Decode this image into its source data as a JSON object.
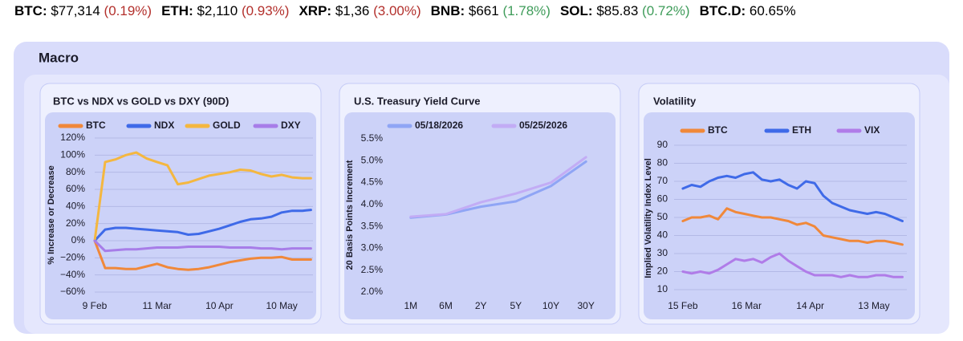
{
  "ticker": [
    {
      "symbol": "BTC:",
      "price": "$77,314",
      "change": "(0.19%)",
      "change_color": "#b3302c"
    },
    {
      "symbol": "ETH:",
      "price": "$2,110",
      "change": "(0.93%)",
      "change_color": "#b3302c"
    },
    {
      "symbol": "XRP:",
      "price": "$1,36",
      "change": "(3.00%)",
      "change_color": "#b3302c"
    },
    {
      "symbol": "BNB:",
      "price": "$661",
      "change": "(1.78%)",
      "change_color": "#3f9c5a"
    },
    {
      "symbol": "SOL:",
      "price": "$85.83",
      "change": "(0.72%)",
      "change_color": "#3f9c5a"
    },
    {
      "symbol": "BTC.D:",
      "price": "60.65%"
    }
  ],
  "section_title": "Macro",
  "chart_data": [
    {
      "type": "line",
      "title": "BTC vs NDX vs GOLD vs DXY (90D)",
      "y_label": "% Increase or Decrease",
      "grid": true,
      "x": [
        0,
        5,
        10,
        15,
        20,
        25,
        30,
        35,
        40,
        45,
        50,
        55,
        60,
        65,
        70,
        75,
        80,
        85,
        90,
        95,
        100,
        104
      ],
      "xlim": [
        0,
        105
      ],
      "xticks": [
        {
          "value": 0,
          "label": "9 Feb"
        },
        {
          "value": 30,
          "label": "11 Mar"
        },
        {
          "value": 60,
          "label": "10 Apr"
        },
        {
          "value": 90,
          "label": "10 May"
        }
      ],
      "ylim": [
        -60,
        120
      ],
      "yticks": [
        {
          "value": -60,
          "label": "−60%"
        },
        {
          "value": -40,
          "label": "−40%"
        },
        {
          "value": -20,
          "label": "−20%"
        },
        {
          "value": 0,
          "label": "0%"
        },
        {
          "value": 20,
          "label": "20%"
        },
        {
          "value": 40,
          "label": "40%"
        },
        {
          "value": 60,
          "label": "60%"
        },
        {
          "value": 80,
          "label": "80%"
        },
        {
          "value": 100,
          "label": "100%"
        },
        {
          "value": 120,
          "label": "120%"
        }
      ],
      "series": [
        {
          "name": "BTC",
          "color": "#f0883a",
          "values": [
            0,
            -32,
            -32,
            -33,
            -33,
            -30,
            -27,
            -31,
            -33,
            -34,
            -33,
            -31,
            -28,
            -25,
            -23,
            -21,
            -20,
            -20,
            -19,
            -22,
            -22,
            -22
          ]
        },
        {
          "name": "NDX",
          "color": "#3f6ae8",
          "values": [
            0,
            13,
            15,
            15,
            14,
            13,
            12,
            11,
            10,
            7,
            8,
            11,
            14,
            18,
            22,
            25,
            26,
            28,
            33,
            35,
            35,
            36
          ]
        },
        {
          "name": "GOLD",
          "color": "#f4b740",
          "values": [
            0,
            92,
            95,
            100,
            103,
            96,
            92,
            88,
            66,
            68,
            72,
            76,
            78,
            80,
            83,
            82,
            78,
            75,
            77,
            74,
            73,
            73
          ]
        },
        {
          "name": "DXY",
          "color": "#a77de8",
          "values": [
            0,
            -12,
            -11,
            -10,
            -10,
            -9,
            -8,
            -8,
            -8,
            -7,
            -7,
            -7,
            -7,
            -8,
            -8,
            -8,
            -9,
            -9,
            -10,
            -9,
            -9,
            -9
          ]
        }
      ]
    },
    {
      "type": "line",
      "title": "U.S. Treasury Yield Curve",
      "y_label": "20 Basis Points Increment",
      "grid": false,
      "categories": [
        "1M",
        "6M",
        "2Y",
        "5Y",
        "10Y",
        "30Y"
      ],
      "ylim": [
        2.0,
        5.5
      ],
      "yticks": [
        {
          "value": 2.0,
          "label": "2.0%"
        },
        {
          "value": 2.5,
          "label": "2.5%"
        },
        {
          "value": 3.0,
          "label": "3.0%"
        },
        {
          "value": 3.5,
          "label": "3.5%"
        },
        {
          "value": 4.0,
          "label": "4.0%"
        },
        {
          "value": 4.5,
          "label": "4.5%"
        },
        {
          "value": 5.0,
          "label": "5.0%"
        },
        {
          "value": 5.5,
          "label": "5.5%"
        }
      ],
      "series": [
        {
          "name": "05/18/2026",
          "color": "#8fa5f5",
          "values": [
            3.7,
            3.77,
            3.95,
            4.07,
            4.42,
            4.98
          ]
        },
        {
          "name": "05/25/2026",
          "color": "#c2acf5",
          "values": [
            3.72,
            3.78,
            4.05,
            4.25,
            4.5,
            5.08
          ]
        }
      ]
    },
    {
      "type": "line",
      "title": "Volatility",
      "y_label": "Implied Volatility Index Level",
      "grid": true,
      "x": [
        0,
        4,
        8,
        12,
        16,
        20,
        24,
        28,
        32,
        36,
        40,
        44,
        48,
        52,
        56,
        60,
        64,
        68,
        72,
        76,
        80,
        84,
        88,
        92,
        96,
        100
      ],
      "xlim": [
        -4,
        102
      ],
      "xticks": [
        {
          "value": 0,
          "label": "15 Feb"
        },
        {
          "value": 29,
          "label": "16 Mar"
        },
        {
          "value": 58,
          "label": "14 Apr"
        },
        {
          "value": 87,
          "label": "13 May"
        }
      ],
      "ylim": [
        10,
        90
      ],
      "yticks": [
        10,
        20,
        30,
        40,
        50,
        60,
        70,
        80,
        90
      ],
      "series": [
        {
          "name": "BTC",
          "color": "#f0883a",
          "values": [
            48,
            50,
            50,
            51,
            49,
            55,
            53,
            52,
            51,
            50,
            50,
            49,
            48,
            46,
            47,
            45,
            40,
            39,
            38,
            37,
            37,
            36,
            37,
            37,
            36,
            35
          ]
        },
        {
          "name": "ETH",
          "color": "#3f6ae8",
          "values": [
            66,
            68,
            67,
            70,
            72,
            73,
            72,
            74,
            75,
            71,
            70,
            71,
            68,
            66,
            70,
            69,
            62,
            58,
            56,
            54,
            53,
            52,
            53,
            52,
            50,
            48
          ]
        },
        {
          "name": "VIX",
          "color": "#b07ce8",
          "values": [
            20,
            19,
            20,
            19,
            21,
            24,
            27,
            26,
            27,
            25,
            28,
            30,
            26,
            23,
            20,
            18,
            18,
            18,
            17,
            18,
            17,
            17,
            18,
            18,
            17,
            17
          ]
        }
      ]
    }
  ]
}
